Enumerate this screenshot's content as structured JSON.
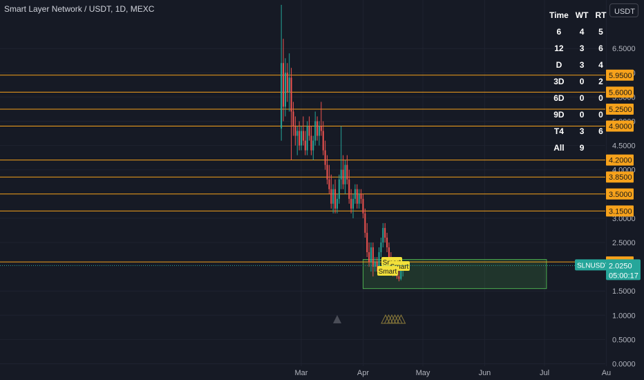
{
  "header": {
    "title": "Smart Layer Network / USDT, 1D, MEXC",
    "currency": "USDT"
  },
  "stats_table": {
    "headers": [
      "Time",
      "WT",
      "RT"
    ],
    "rows": [
      [
        "6",
        "4",
        "5"
      ],
      [
        "12",
        "3",
        "6"
      ],
      [
        "D",
        "3",
        "4"
      ],
      [
        "3D",
        "0",
        "2"
      ],
      [
        "6D",
        "0",
        "0"
      ],
      [
        "9D",
        "0",
        "0"
      ],
      [
        "T4",
        "3",
        "6"
      ],
      [
        "All",
        "9",
        ""
      ]
    ]
  },
  "colors": {
    "background": "#161a25",
    "up": "#26a69a",
    "down": "#ef5350",
    "level": "#f7a21b",
    "zone": "#4caf50",
    "marker": "#f2e03a"
  },
  "chart_data": {
    "type": "candlestick",
    "symbol": "SLNUSDT",
    "y_ticks": [
      "6.5000",
      "6.0000",
      "5.5000",
      "5.0000",
      "4.5000",
      "4.0000",
      "3.0000",
      "2.5000",
      "1.5000",
      "1.0000",
      "0.5000",
      "0.0000"
    ],
    "ylim": [
      -0.05,
      7.5
    ],
    "x_ticks": [
      "Mar",
      "Apr",
      "May",
      "Jun",
      "Jul",
      "Au"
    ],
    "levels": [
      "5.9500",
      "5.6000",
      "5.2500",
      "4.9000",
      "4.2000",
      "3.8500",
      "3.5000",
      "3.1500",
      "2.1000"
    ],
    "last_price": "2.0250",
    "countdown": "05:00:17",
    "zone": {
      "start": "Apr 1",
      "end": "Jul 2",
      "low": 1.55,
      "high": 2.15
    },
    "markers": [
      "Smart",
      "Smart",
      "Smart"
    ],
    "candles": [
      {
        "date": "Feb 20",
        "o": 4.85,
        "h": 7.4,
        "l": 4.6,
        "c": 6.2
      },
      {
        "date": "Feb 21",
        "o": 6.2,
        "h": 6.7,
        "l": 5.0,
        "c": 5.3
      },
      {
        "date": "Feb 22",
        "o": 5.3,
        "h": 6.3,
        "l": 5.1,
        "c": 6.0
      },
      {
        "date": "Feb 23",
        "o": 6.0,
        "h": 6.2,
        "l": 5.4,
        "c": 5.6
      },
      {
        "date": "Feb 24",
        "o": 5.6,
        "h": 6.4,
        "l": 5.2,
        "c": 5.9
      },
      {
        "date": "Feb 25",
        "o": 5.9,
        "h": 6.1,
        "l": 4.2,
        "c": 5.2
      },
      {
        "date": "Feb 26",
        "o": 5.2,
        "h": 5.4,
        "l": 4.7,
        "c": 4.9
      },
      {
        "date": "Feb 27",
        "o": 4.9,
        "h": 5.1,
        "l": 4.5,
        "c": 4.7
      },
      {
        "date": "Feb 28",
        "o": 4.7,
        "h": 4.9,
        "l": 4.3,
        "c": 4.8
      },
      {
        "date": "Feb 29",
        "o": 4.8,
        "h": 5.0,
        "l": 4.4,
        "c": 4.5
      },
      {
        "date": "Mar 1",
        "o": 4.5,
        "h": 4.9,
        "l": 4.4,
        "c": 4.8
      },
      {
        "date": "Mar 2",
        "o": 4.8,
        "h": 5.1,
        "l": 4.5,
        "c": 4.6
      },
      {
        "date": "Mar 3",
        "o": 4.6,
        "h": 4.8,
        "l": 4.3,
        "c": 4.4
      },
      {
        "date": "Mar 4",
        "o": 4.4,
        "h": 5.0,
        "l": 4.3,
        "c": 4.9
      },
      {
        "date": "Mar 5",
        "o": 4.9,
        "h": 5.1,
        "l": 4.6,
        "c": 4.7
      },
      {
        "date": "Mar 6",
        "o": 4.7,
        "h": 4.9,
        "l": 4.3,
        "c": 4.4
      },
      {
        "date": "Mar 7",
        "o": 4.4,
        "h": 4.7,
        "l": 4.2,
        "c": 4.6
      },
      {
        "date": "Mar 8",
        "o": 4.6,
        "h": 5.2,
        "l": 4.5,
        "c": 5.0
      },
      {
        "date": "Mar 9",
        "o": 5.0,
        "h": 5.1,
        "l": 4.6,
        "c": 4.7
      },
      {
        "date": "Mar 10",
        "o": 4.7,
        "h": 5.0,
        "l": 4.5,
        "c": 4.9
      },
      {
        "date": "Mar 11",
        "o": 4.9,
        "h": 5.4,
        "l": 4.7,
        "c": 4.8
      },
      {
        "date": "Mar 12",
        "o": 4.8,
        "h": 5.0,
        "l": 4.3,
        "c": 4.4
      },
      {
        "date": "Mar 13",
        "o": 4.4,
        "h": 4.6,
        "l": 4.0,
        "c": 4.1
      },
      {
        "date": "Mar 14",
        "o": 4.1,
        "h": 4.3,
        "l": 3.7,
        "c": 3.8
      },
      {
        "date": "Mar 15",
        "o": 3.8,
        "h": 4.1,
        "l": 3.5,
        "c": 3.6
      },
      {
        "date": "Mar 16",
        "o": 3.6,
        "h": 3.9,
        "l": 3.2,
        "c": 3.3
      },
      {
        "date": "Mar 17",
        "o": 3.3,
        "h": 3.7,
        "l": 3.1,
        "c": 3.6
      },
      {
        "date": "Mar 18",
        "o": 3.6,
        "h": 3.8,
        "l": 3.1,
        "c": 3.2
      },
      {
        "date": "Mar 19",
        "o": 3.2,
        "h": 3.5,
        "l": 3.1,
        "c": 3.4
      },
      {
        "date": "Mar 20",
        "o": 3.4,
        "h": 3.9,
        "l": 3.3,
        "c": 3.8
      },
      {
        "date": "Mar 21",
        "o": 3.8,
        "h": 4.9,
        "l": 3.6,
        "c": 4.0
      },
      {
        "date": "Mar 22",
        "o": 4.0,
        "h": 4.3,
        "l": 3.6,
        "c": 3.7
      },
      {
        "date": "Mar 23",
        "o": 3.7,
        "h": 4.2,
        "l": 3.5,
        "c": 4.1
      },
      {
        "date": "Mar 24",
        "o": 4.1,
        "h": 4.3,
        "l": 3.7,
        "c": 3.8
      },
      {
        "date": "Mar 25",
        "o": 3.8,
        "h": 4.0,
        "l": 3.3,
        "c": 3.4
      },
      {
        "date": "Mar 26",
        "o": 3.4,
        "h": 3.6,
        "l": 3.1,
        "c": 3.2
      },
      {
        "date": "Mar 27",
        "o": 3.2,
        "h": 3.5,
        "l": 3.0,
        "c": 3.4
      },
      {
        "date": "Mar 28",
        "o": 3.4,
        "h": 3.7,
        "l": 3.3,
        "c": 3.6
      },
      {
        "date": "Mar 29",
        "o": 3.6,
        "h": 3.7,
        "l": 3.2,
        "c": 3.3
      },
      {
        "date": "Mar 30",
        "o": 3.3,
        "h": 3.6,
        "l": 3.2,
        "c": 3.5
      },
      {
        "date": "Mar 31",
        "o": 3.5,
        "h": 3.6,
        "l": 3.3,
        "c": 3.4
      },
      {
        "date": "Apr 1",
        "o": 3.4,
        "h": 3.5,
        "l": 3.0,
        "c": 3.1
      },
      {
        "date": "Apr 2",
        "o": 3.1,
        "h": 3.2,
        "l": 2.6,
        "c": 2.7
      },
      {
        "date": "Apr 3",
        "o": 2.7,
        "h": 2.9,
        "l": 2.2,
        "c": 2.3
      },
      {
        "date": "Apr 4",
        "o": 2.3,
        "h": 2.5,
        "l": 2.0,
        "c": 2.1
      },
      {
        "date": "Apr 5",
        "o": 2.1,
        "h": 2.5,
        "l": 1.9,
        "c": 2.4
      },
      {
        "date": "Apr 6",
        "o": 2.4,
        "h": 2.5,
        "l": 1.8,
        "c": 2.0
      },
      {
        "date": "Apr 7",
        "o": 2.0,
        "h": 2.2,
        "l": 1.9,
        "c": 2.1
      },
      {
        "date": "Apr 8",
        "o": 2.1,
        "h": 2.2,
        "l": 1.9,
        "c": 2.0
      },
      {
        "date": "Apr 9",
        "o": 2.0,
        "h": 2.4,
        "l": 1.9,
        "c": 2.3
      },
      {
        "date": "Apr 10",
        "o": 2.3,
        "h": 2.6,
        "l": 2.2,
        "c": 2.5
      },
      {
        "date": "Apr 11",
        "o": 2.5,
        "h": 2.9,
        "l": 2.4,
        "c": 2.8
      },
      {
        "date": "Apr 12",
        "o": 2.8,
        "h": 2.9,
        "l": 2.5,
        "c": 2.6
      },
      {
        "date": "Apr 13",
        "o": 2.6,
        "h": 2.7,
        "l": 2.3,
        "c": 2.4
      },
      {
        "date": "Apr 14",
        "o": 2.4,
        "h": 2.5,
        "l": 2.1,
        "c": 2.2
      },
      {
        "date": "Apr 15",
        "o": 2.2,
        "h": 2.3,
        "l": 1.9,
        "c": 2.0
      },
      {
        "date": "Apr 16",
        "o": 2.0,
        "h": 2.1,
        "l": 1.8,
        "c": 1.85
      },
      {
        "date": "Apr 17",
        "o": 1.85,
        "h": 2.15,
        "l": 1.8,
        "c": 2.1
      },
      {
        "date": "Apr 18",
        "o": 2.1,
        "h": 2.2,
        "l": 1.75,
        "c": 1.8
      },
      {
        "date": "Apr 19",
        "o": 1.8,
        "h": 1.95,
        "l": 1.7,
        "c": 1.75
      },
      {
        "date": "Apr 20",
        "o": 1.75,
        "h": 2.2,
        "l": 1.72,
        "c": 1.95
      },
      {
        "date": "Apr 21",
        "o": 1.95,
        "h": 2.1,
        "l": 1.8,
        "c": 2.025
      }
    ]
  }
}
